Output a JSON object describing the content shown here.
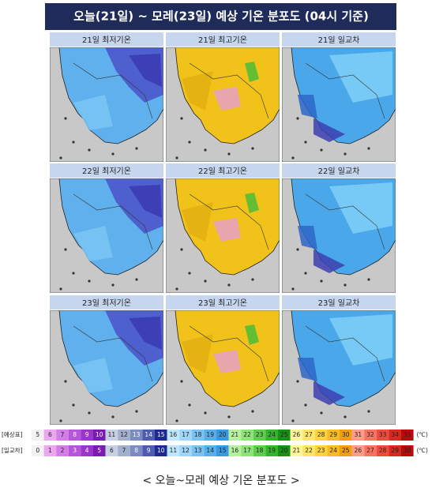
{
  "header": {
    "title": "오늘(21일) ~ 모레(23일) 예상 기온 분포도 (04시 기준)"
  },
  "panels": [
    [
      "21일 최저기온",
      "21일 최고기온",
      "21일 일교차"
    ],
    [
      "22일 최저기온",
      "22일 최고기온",
      "22일 일교차"
    ],
    [
      "23일 최저기온",
      "23일 최고기온",
      "23일 일교차"
    ]
  ],
  "legend": [
    {
      "label": "[예상표]",
      "values": [
        5,
        6,
        7,
        8,
        9,
        10,
        11,
        12,
        13,
        14,
        15,
        16,
        17,
        18,
        19,
        20,
        21,
        22,
        23,
        24,
        25,
        26,
        27,
        28,
        29,
        30,
        31,
        32,
        33,
        34,
        35
      ],
      "unit": "(℃)"
    },
    {
      "label": "[일교차]",
      "values": [
        0,
        1,
        2,
        3,
        4,
        5,
        6,
        7,
        8,
        9,
        10,
        11,
        12,
        13,
        14,
        15,
        16,
        17,
        18,
        19,
        20,
        21,
        22,
        23,
        24,
        25,
        26,
        27,
        28,
        29,
        30
      ],
      "unit": "(℃)"
    }
  ],
  "caption": "< 오늘~모레 예상 기온 분포도 >"
}
